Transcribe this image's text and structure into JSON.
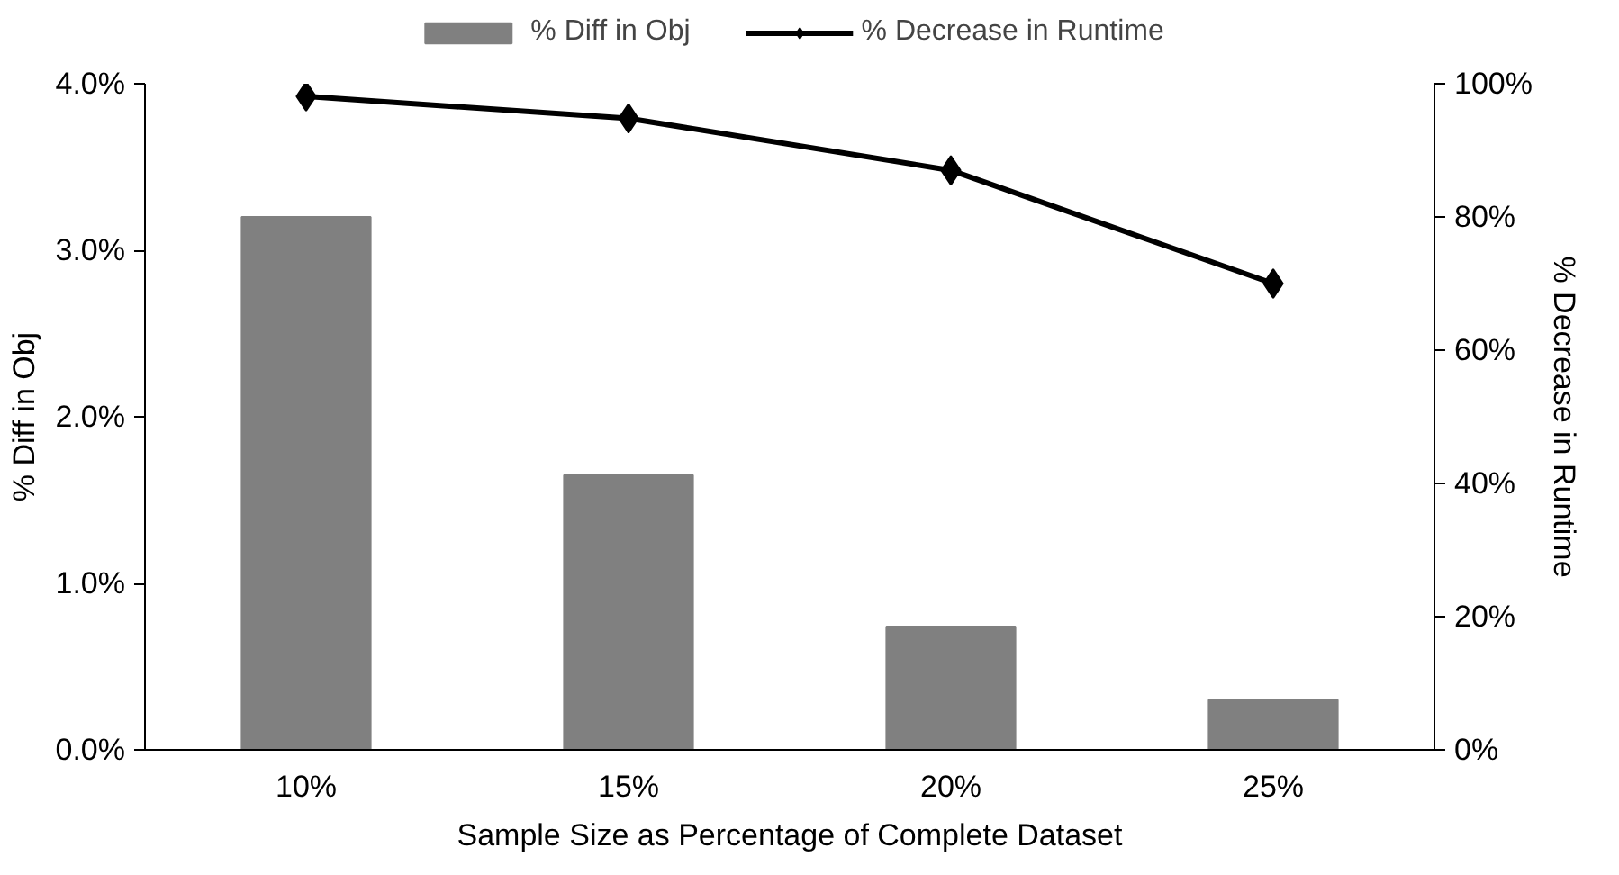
{
  "chart_data": {
    "type": "bar",
    "categories": [
      "10%",
      "15%",
      "20%",
      "25%"
    ],
    "xlabel": "Sample Size as Percentage of Complete Dataset",
    "ylabel": "% Diff in Obj",
    "y2label": "% Decrease in Runtime",
    "series": [
      {
        "name": "% Diff in Obj",
        "color": "#808080",
        "values": [
          3.2,
          1.65,
          0.74,
          0.3
        ]
      },
      {
        "name": "% Decrease in Runtime",
        "type": "line",
        "color": "#000000",
        "axis": "y2",
        "marker": "diamond",
        "values": [
          98.1,
          94.8,
          87.0,
          70.0
        ]
      }
    ],
    "ylim": [
      0,
      4
    ],
    "yticks": [
      {
        "value": 0,
        "label": "0.0%"
      },
      {
        "value": 1,
        "label": "1.0%"
      },
      {
        "value": 2,
        "label": "2.0%"
      },
      {
        "value": 3,
        "label": "3.0%"
      },
      {
        "value": 4,
        "label": "4.0%"
      }
    ],
    "y2lim": [
      0,
      100
    ],
    "y2ticks": [
      {
        "value": 0,
        "label": "0%"
      },
      {
        "value": 20,
        "label": "20%"
      },
      {
        "value": 40,
        "label": "40%"
      },
      {
        "value": 60,
        "label": "60%"
      },
      {
        "value": 80,
        "label": "80%"
      },
      {
        "value": 100,
        "label": "100%"
      }
    ],
    "grid": false,
    "legend": "top"
  }
}
